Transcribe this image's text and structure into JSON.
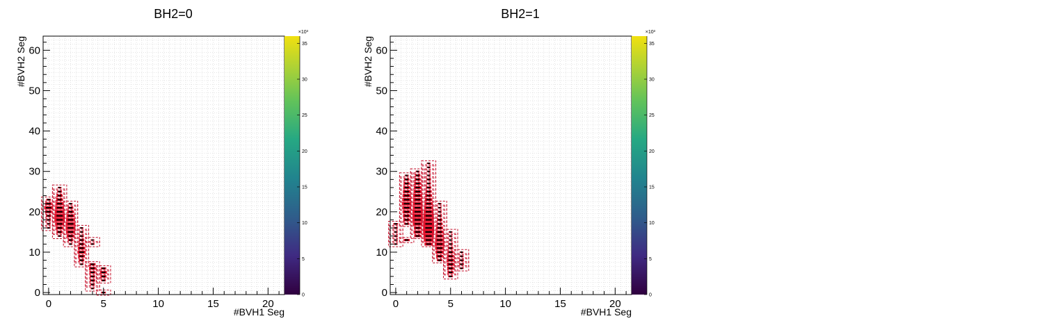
{
  "chart_data": [
    {
      "type": "heatmap",
      "title": "BH2=0",
      "xlabel": "#BVH1 Seg",
      "ylabel": "#BVH2 Seg",
      "xlim": [
        -0.5,
        21.5
      ],
      "ylim": [
        -0.5,
        63.5
      ],
      "xticks": [
        "0",
        "5",
        "10",
        "15",
        "20"
      ],
      "yticks": [
        "0",
        "10",
        "20",
        "30",
        "40",
        "50",
        "60"
      ],
      "colorbar": {
        "range": [
          0,
          36
        ],
        "ticks": [
          "0",
          "5",
          "10",
          "15",
          "20",
          "25",
          "30",
          "35"
        ],
        "exponent": "×10³",
        "palette": "viridis"
      },
      "colors": {
        "fill": "#e8102a",
        "box": "#c80f2a",
        "mark": "#000000",
        "grid": "#c8c8c8"
      },
      "grid": true,
      "cells": [
        [
          0,
          16,
          10
        ],
        [
          0,
          17,
          12
        ],
        [
          0,
          18,
          14
        ],
        [
          0,
          19,
          16
        ],
        [
          0,
          20,
          20
        ],
        [
          0,
          21,
          26
        ],
        [
          0,
          22,
          20
        ],
        [
          0,
          23,
          14
        ],
        [
          1,
          14,
          12
        ],
        [
          1,
          15,
          18
        ],
        [
          1,
          16,
          22
        ],
        [
          1,
          17,
          26
        ],
        [
          1,
          18,
          30
        ],
        [
          1,
          19,
          30
        ],
        [
          1,
          20,
          28
        ],
        [
          1,
          21,
          26
        ],
        [
          1,
          22,
          24
        ],
        [
          1,
          23,
          20
        ],
        [
          1,
          24,
          18
        ],
        [
          1,
          25,
          14
        ],
        [
          1,
          26,
          10
        ],
        [
          2,
          12,
          10
        ],
        [
          2,
          13,
          16
        ],
        [
          2,
          14,
          22
        ],
        [
          2,
          15,
          26
        ],
        [
          2,
          16,
          28
        ],
        [
          2,
          17,
          28
        ],
        [
          2,
          18,
          26
        ],
        [
          2,
          19,
          24
        ],
        [
          2,
          20,
          20
        ],
        [
          2,
          21,
          16
        ],
        [
          2,
          22,
          12
        ],
        [
          3,
          7,
          12
        ],
        [
          3,
          8,
          16
        ],
        [
          3,
          9,
          20
        ],
        [
          3,
          10,
          24
        ],
        [
          3,
          11,
          22
        ],
        [
          3,
          12,
          18
        ],
        [
          3,
          13,
          16
        ],
        [
          3,
          14,
          14
        ],
        [
          3,
          15,
          12
        ],
        [
          3,
          16,
          10
        ],
        [
          4,
          1,
          10
        ],
        [
          4,
          2,
          14
        ],
        [
          4,
          3,
          16
        ],
        [
          4,
          4,
          16
        ],
        [
          4,
          5,
          18
        ],
        [
          4,
          6,
          20
        ],
        [
          4,
          7,
          18
        ],
        [
          4,
          12,
          12
        ],
        [
          4,
          13,
          10
        ],
        [
          5,
          0,
          14
        ],
        [
          5,
          3,
          14
        ],
        [
          5,
          4,
          18
        ],
        [
          5,
          5,
          20
        ],
        [
          5,
          6,
          16
        ]
      ]
    },
    {
      "type": "heatmap",
      "title": "BH2=1",
      "xlabel": "#BVH1 Seg",
      "ylabel": "#BVH2 Seg",
      "xlim": [
        -0.5,
        21.5
      ],
      "ylim": [
        -0.5,
        63.5
      ],
      "xticks": [
        "0",
        "5",
        "10",
        "15",
        "20"
      ],
      "yticks": [
        "0",
        "10",
        "20",
        "30",
        "40",
        "50",
        "60"
      ],
      "colorbar": {
        "range": [
          0,
          36
        ],
        "ticks": [
          "0",
          "5",
          "10",
          "15",
          "20",
          "25",
          "30",
          "35"
        ],
        "exponent": "×10³",
        "palette": "viridis"
      },
      "colors": {
        "fill": "#e8102a",
        "box": "#c80f2a",
        "mark": "#000000",
        "grid": "#c8c8c8"
      },
      "grid": true,
      "cells": [
        [
          0,
          12,
          10
        ],
        [
          0,
          13,
          12
        ],
        [
          0,
          14,
          12
        ],
        [
          0,
          15,
          10
        ],
        [
          0,
          16,
          12
        ],
        [
          0,
          17,
          14
        ],
        [
          1,
          13,
          18
        ],
        [
          1,
          17,
          16
        ],
        [
          1,
          18,
          20
        ],
        [
          1,
          19,
          22
        ],
        [
          1,
          20,
          24
        ],
        [
          1,
          21,
          26
        ],
        [
          1,
          22,
          28
        ],
        [
          1,
          23,
          26
        ],
        [
          1,
          24,
          24
        ],
        [
          1,
          25,
          22
        ],
        [
          1,
          26,
          20
        ],
        [
          1,
          27,
          18
        ],
        [
          1,
          28,
          16
        ],
        [
          1,
          29,
          12
        ],
        [
          2,
          14,
          20
        ],
        [
          2,
          15,
          24
        ],
        [
          2,
          16,
          22
        ],
        [
          2,
          17,
          28
        ],
        [
          2,
          18,
          30
        ],
        [
          2,
          19,
          30
        ],
        [
          2,
          20,
          30
        ],
        [
          2,
          21,
          28
        ],
        [
          2,
          22,
          28
        ],
        [
          2,
          23,
          26
        ],
        [
          2,
          24,
          26
        ],
        [
          2,
          25,
          24
        ],
        [
          2,
          26,
          22
        ],
        [
          2,
          27,
          20
        ],
        [
          2,
          28,
          18
        ],
        [
          2,
          29,
          16
        ],
        [
          2,
          30,
          12
        ],
        [
          3,
          12,
          24
        ],
        [
          3,
          13,
          28
        ],
        [
          3,
          14,
          30
        ],
        [
          3,
          15,
          32
        ],
        [
          3,
          16,
          32
        ],
        [
          3,
          17,
          32
        ],
        [
          3,
          18,
          30
        ],
        [
          3,
          19,
          30
        ],
        [
          3,
          20,
          28
        ],
        [
          3,
          21,
          26
        ],
        [
          3,
          22,
          24
        ],
        [
          3,
          23,
          22
        ],
        [
          3,
          24,
          20
        ],
        [
          3,
          25,
          18
        ],
        [
          3,
          26,
          16
        ],
        [
          3,
          27,
          14
        ],
        [
          3,
          28,
          14
        ],
        [
          3,
          29,
          12
        ],
        [
          3,
          30,
          10
        ],
        [
          3,
          31,
          10
        ],
        [
          3,
          32,
          8
        ],
        [
          4,
          8,
          16
        ],
        [
          4,
          9,
          20
        ],
        [
          4,
          10,
          24
        ],
        [
          4,
          11,
          26
        ],
        [
          4,
          12,
          28
        ],
        [
          4,
          13,
          26
        ],
        [
          4,
          14,
          24
        ],
        [
          4,
          15,
          22
        ],
        [
          4,
          16,
          20
        ],
        [
          4,
          17,
          18
        ],
        [
          4,
          18,
          16
        ],
        [
          4,
          19,
          14
        ],
        [
          4,
          20,
          12
        ],
        [
          4,
          21,
          10
        ],
        [
          4,
          22,
          8
        ],
        [
          5,
          4,
          14
        ],
        [
          5,
          5,
          18
        ],
        [
          5,
          6,
          20
        ],
        [
          5,
          7,
          22
        ],
        [
          5,
          8,
          22
        ],
        [
          5,
          9,
          20
        ],
        [
          5,
          10,
          18
        ],
        [
          5,
          11,
          16
        ],
        [
          5,
          12,
          14
        ],
        [
          5,
          13,
          12
        ],
        [
          5,
          14,
          10
        ],
        [
          5,
          15,
          8
        ],
        [
          6,
          6,
          12
        ],
        [
          6,
          7,
          14
        ],
        [
          6,
          8,
          14
        ],
        [
          6,
          9,
          12
        ],
        [
          6,
          10,
          10
        ]
      ]
    }
  ]
}
